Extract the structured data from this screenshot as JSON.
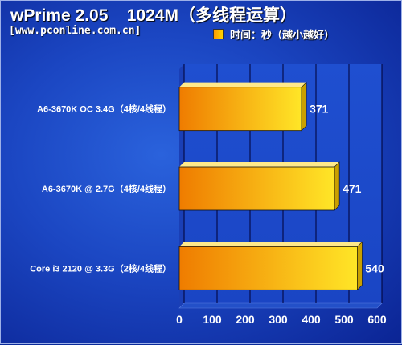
{
  "title": "wPrime 2.05    1024M（多线程运算）",
  "source": "[www.pconline.com.cn]",
  "colors": {
    "background": "#1b46c2",
    "bar_start": "#ef7c00",
    "bar_end": "#ffe627",
    "text": "#ffffff"
  },
  "chart_data": {
    "type": "bar",
    "orientation": "horizontal",
    "categories": [
      "A6-3670K OC 3.4G（4核/4线程）",
      "A6-3670K @ 2.7G（4核/4线程）",
      "Core i3 2120 @ 3.3G（2核/4线程）"
    ],
    "series": [
      {
        "name": "时间：秒（越小越好）",
        "values": [
          371,
          471,
          540
        ]
      }
    ],
    "data_labels": [
      "371",
      "471",
      "540"
    ],
    "xlim": [
      0,
      600
    ],
    "xticks": [
      0,
      100,
      200,
      300,
      400,
      500,
      600
    ],
    "grid": true,
    "legend_position": "top-right"
  }
}
